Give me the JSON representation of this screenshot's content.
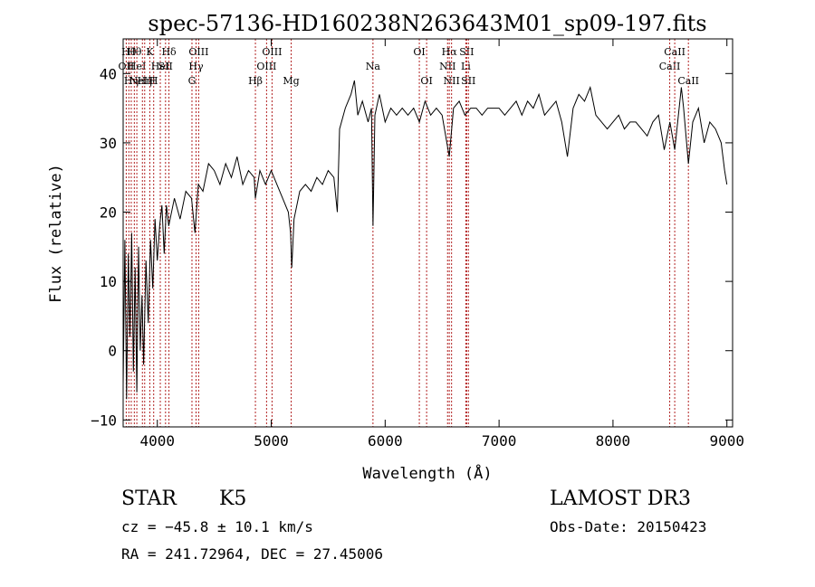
{
  "chart_data": {
    "type": "line",
    "title": "spec-57136-HD160238N263643M01_sp09-197.fits",
    "xlabel": "Wavelength (Å)",
    "ylabel": "Flux (relative)",
    "xlim": [
      3700,
      9050
    ],
    "ylim": [
      -11,
      45
    ],
    "xticks": [
      4000,
      5000,
      6000,
      7000,
      8000,
      9000
    ],
    "yticks": [
      -10,
      0,
      10,
      20,
      30,
      40
    ],
    "grid": false,
    "series": [
      {
        "color": "#000000",
        "points": [
          [
            3700,
            -5
          ],
          [
            3715,
            16
          ],
          [
            3730,
            -7
          ],
          [
            3745,
            14
          ],
          [
            3760,
            2
          ],
          [
            3775,
            17
          ],
          [
            3790,
            -3
          ],
          [
            3805,
            12
          ],
          [
            3820,
            -6
          ],
          [
            3835,
            15
          ],
          [
            3850,
            0
          ],
          [
            3865,
            8
          ],
          [
            3880,
            -2
          ],
          [
            3900,
            13
          ],
          [
            3920,
            4
          ],
          [
            3940,
            16
          ],
          [
            3960,
            9
          ],
          [
            3980,
            19
          ],
          [
            4000,
            13
          ],
          [
            4020,
            18
          ],
          [
            4040,
            21
          ],
          [
            4060,
            14
          ],
          [
            4080,
            21
          ],
          [
            4100,
            18
          ],
          [
            4150,
            22
          ],
          [
            4200,
            19
          ],
          [
            4250,
            23
          ],
          [
            4300,
            22
          ],
          [
            4330,
            17
          ],
          [
            4360,
            24
          ],
          [
            4400,
            23
          ],
          [
            4450,
            27
          ],
          [
            4500,
            26
          ],
          [
            4550,
            24
          ],
          [
            4600,
            27
          ],
          [
            4650,
            25
          ],
          [
            4700,
            28
          ],
          [
            4750,
            24
          ],
          [
            4800,
            26
          ],
          [
            4850,
            25
          ],
          [
            4861,
            22
          ],
          [
            4900,
            26
          ],
          [
            4950,
            24
          ],
          [
            5000,
            26
          ],
          [
            5050,
            24
          ],
          [
            5100,
            22
          ],
          [
            5150,
            20
          ],
          [
            5170,
            17
          ],
          [
            5180,
            12
          ],
          [
            5200,
            19
          ],
          [
            5250,
            23
          ],
          [
            5300,
            24
          ],
          [
            5350,
            23
          ],
          [
            5400,
            25
          ],
          [
            5450,
            24
          ],
          [
            5500,
            26
          ],
          [
            5550,
            25
          ],
          [
            5580,
            20
          ],
          [
            5600,
            32
          ],
          [
            5650,
            35
          ],
          [
            5700,
            37
          ],
          [
            5730,
            39
          ],
          [
            5760,
            34
          ],
          [
            5800,
            36
          ],
          [
            5850,
            33
          ],
          [
            5880,
            35
          ],
          [
            5893,
            18
          ],
          [
            5910,
            34
          ],
          [
            5950,
            37
          ],
          [
            6000,
            33
          ],
          [
            6050,
            35
          ],
          [
            6100,
            34
          ],
          [
            6150,
            35
          ],
          [
            6200,
            34
          ],
          [
            6250,
            35
          ],
          [
            6300,
            33
          ],
          [
            6350,
            36
          ],
          [
            6400,
            34
          ],
          [
            6450,
            35
          ],
          [
            6500,
            34
          ],
          [
            6563,
            28
          ],
          [
            6600,
            35
          ],
          [
            6650,
            36
          ],
          [
            6700,
            34
          ],
          [
            6750,
            35
          ],
          [
            6800,
            35
          ],
          [
            6850,
            34
          ],
          [
            6900,
            35
          ],
          [
            6950,
            35
          ],
          [
            7000,
            35
          ],
          [
            7050,
            34
          ],
          [
            7100,
            35
          ],
          [
            7150,
            36
          ],
          [
            7200,
            34
          ],
          [
            7250,
            36
          ],
          [
            7300,
            35
          ],
          [
            7350,
            37
          ],
          [
            7400,
            34
          ],
          [
            7450,
            35
          ],
          [
            7500,
            36
          ],
          [
            7550,
            33
          ],
          [
            7600,
            28
          ],
          [
            7650,
            35
          ],
          [
            7700,
            37
          ],
          [
            7750,
            36
          ],
          [
            7800,
            38
          ],
          [
            7850,
            34
          ],
          [
            7900,
            33
          ],
          [
            7950,
            32
          ],
          [
            8000,
            33
          ],
          [
            8050,
            34
          ],
          [
            8100,
            32
          ],
          [
            8150,
            33
          ],
          [
            8200,
            33
          ],
          [
            8250,
            32
          ],
          [
            8300,
            31
          ],
          [
            8350,
            33
          ],
          [
            8400,
            34
          ],
          [
            8450,
            29
          ],
          [
            8500,
            33
          ],
          [
            8542,
            29
          ],
          [
            8600,
            38
          ],
          [
            8620,
            35
          ],
          [
            8662,
            27
          ],
          [
            8700,
            33
          ],
          [
            8750,
            35
          ],
          [
            8800,
            30
          ],
          [
            8850,
            33
          ],
          [
            8900,
            32
          ],
          [
            8950,
            30
          ],
          [
            8980,
            26
          ],
          [
            9000,
            24
          ]
        ]
      }
    ],
    "lines": [
      {
        "x": 3727,
        "label": "OII",
        "row": 1
      },
      {
        "x": 3750,
        "label": "Hθ",
        "row": 0
      },
      {
        "x": 3771,
        "label": "Hη",
        "row": 2
      },
      {
        "x": 3798,
        "label": "Hθ",
        "row": 0
      },
      {
        "x": 3820,
        "label": "HeI",
        "row": 1
      },
      {
        "x": 3869,
        "label": "NeIII",
        "row": 2
      },
      {
        "x": 3889,
        "label": "Hη",
        "row": 2
      },
      {
        "x": 3934,
        "label": "K",
        "row": 0
      },
      {
        "x": 3968,
        "label": "H",
        "row": 2
      },
      {
        "x": 4026,
        "label": "HeI",
        "row": 1
      },
      {
        "x": 4072,
        "label": "SII",
        "row": 1
      },
      {
        "x": 4102,
        "label": "Hδ",
        "row": 0
      },
      {
        "x": 4304,
        "label": "G",
        "row": 2
      },
      {
        "x": 4340,
        "label": "Hγ",
        "row": 1
      },
      {
        "x": 4363,
        "label": "OIII",
        "row": 0
      },
      {
        "x": 4861,
        "label": "Hβ",
        "row": 2
      },
      {
        "x": 4959,
        "label": "OIII",
        "row": 1
      },
      {
        "x": 5007,
        "label": "OIII",
        "row": 0
      },
      {
        "x": 5175,
        "label": "Mg",
        "row": 2
      },
      {
        "x": 5893,
        "label": "Na",
        "row": 1
      },
      {
        "x": 6300,
        "label": "OI",
        "row": 0
      },
      {
        "x": 6364,
        "label": "OI",
        "row": 2
      },
      {
        "x": 6548,
        "label": "NII",
        "row": 1
      },
      {
        "x": 6563,
        "label": "Hα",
        "row": 0
      },
      {
        "x": 6583,
        "label": "NII",
        "row": 2
      },
      {
        "x": 6708,
        "label": "Li",
        "row": 1
      },
      {
        "x": 6716,
        "label": "SII",
        "row": 0
      },
      {
        "x": 6731,
        "label": "SII",
        "row": 2
      },
      {
        "x": 8498,
        "label": "CaII",
        "row": 1
      },
      {
        "x": 8542,
        "label": "CaII",
        "row": 0
      },
      {
        "x": 8662,
        "label": "CaII",
        "row": 2
      }
    ]
  },
  "info": {
    "class": "STAR",
    "subclass": "K5",
    "survey": "LAMOST DR3",
    "cz": "cz = −45.8 ± 10.1 km/s",
    "obs_date": "Obs-Date: 20150423",
    "coords": "RA = 241.72964, DEC =  27.45006"
  }
}
